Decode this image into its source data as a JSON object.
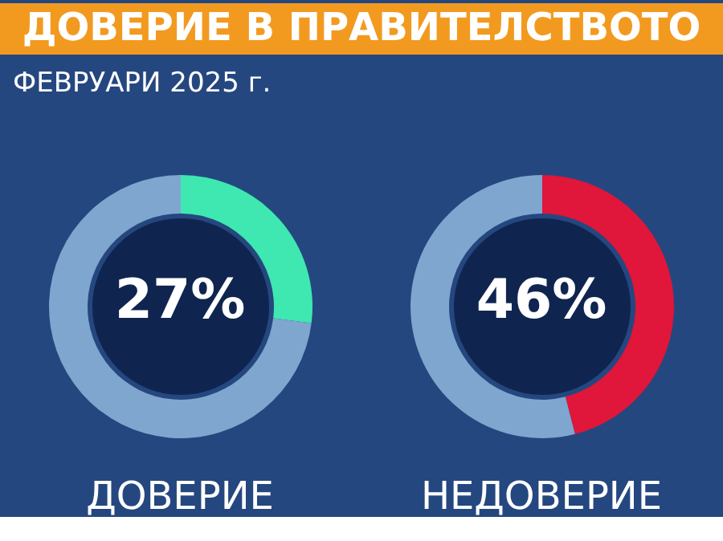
{
  "chart_data": [
    {
      "type": "other",
      "title": "ДОВЕРИЕ В ПРАВИТЕЛСТВОТО",
      "subtitle": "ФЕВРУАРИ 2025 г."
    },
    {
      "type": "donut",
      "categories": [
        null,
        null
      ],
      "values": [
        27,
        73
      ],
      "colors": [
        "#3ee8b0",
        "#7fa6cf"
      ],
      "value_labels": [
        "27%",
        null
      ],
      "xlabel": "ДОВЕРИЕ"
    },
    {
      "type": "donut",
      "categories": [
        null,
        null
      ],
      "values": [
        46,
        54
      ],
      "colors": [
        "#e0163a",
        "#7fa6cf"
      ],
      "value_labels": [
        "46%",
        null
      ],
      "xlabel": "НЕДОВЕРИЕ"
    }
  ]
}
